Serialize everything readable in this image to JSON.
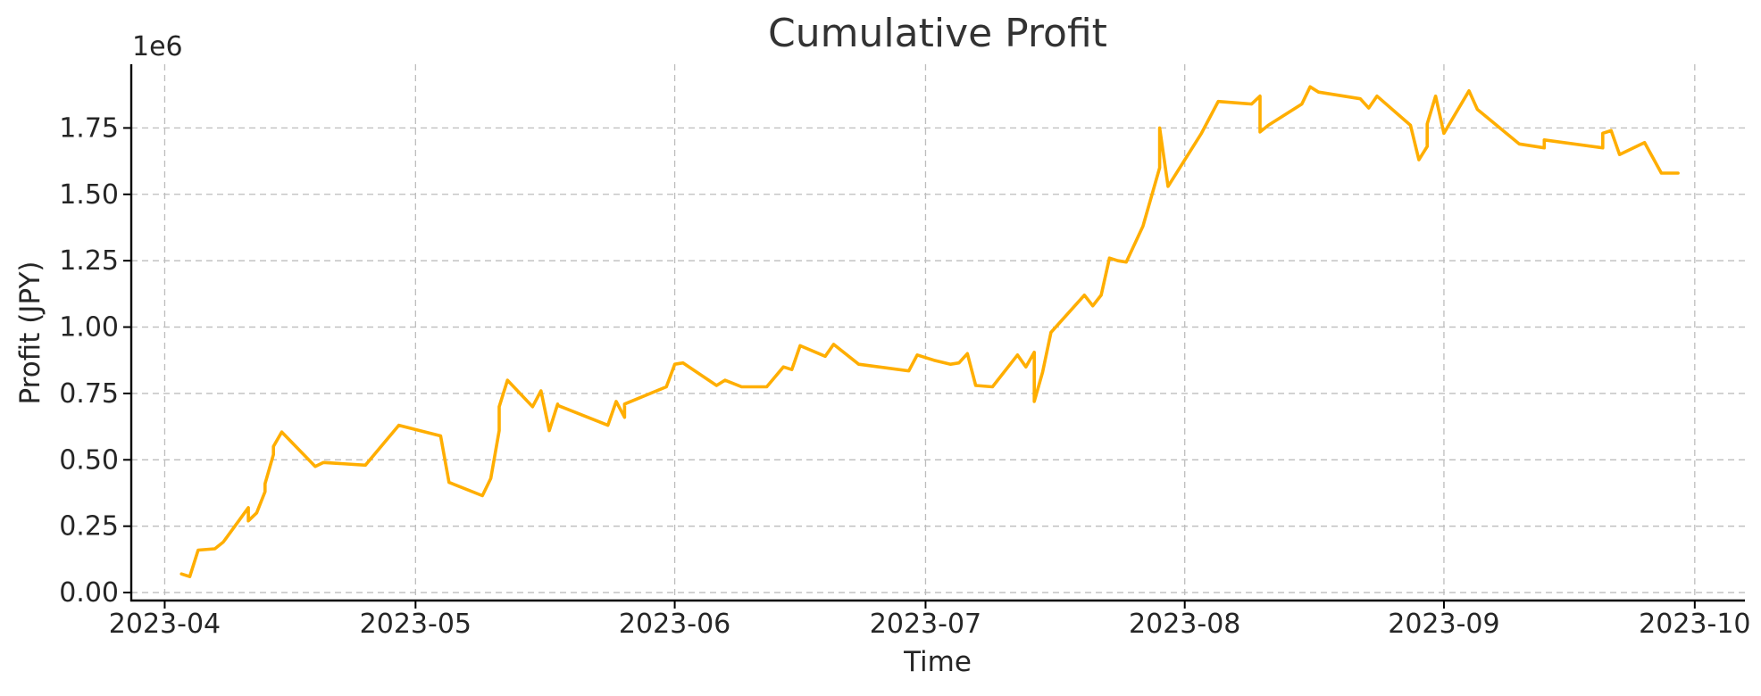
{
  "chart_data": {
    "type": "line",
    "title": "Cumulative Profit",
    "xlabel": "Time",
    "ylabel": "Profit (JPY)",
    "y_offset_label": "1e6",
    "y_scale": 1000000,
    "xlim": [
      "2023-03-28",
      "2023-10-07"
    ],
    "ylim": [
      -0.03,
      1.99
    ],
    "grid": true,
    "line_color": "#FFAE00",
    "x_ticks": [
      {
        "date": "2023-04-01",
        "label": "2023-04"
      },
      {
        "date": "2023-05-01",
        "label": "2023-05"
      },
      {
        "date": "2023-06-01",
        "label": "2023-06"
      },
      {
        "date": "2023-07-01",
        "label": "2023-07"
      },
      {
        "date": "2023-08-01",
        "label": "2023-08"
      },
      {
        "date": "2023-09-01",
        "label": "2023-09"
      },
      {
        "date": "2023-10-01",
        "label": "2023-10"
      }
    ],
    "y_ticks": [
      {
        "value": 0.0,
        "label": "0.00"
      },
      {
        "value": 0.25,
        "label": "0.25"
      },
      {
        "value": 0.5,
        "label": "0.50"
      },
      {
        "value": 0.75,
        "label": "0.75"
      },
      {
        "value": 1.0,
        "label": "1.00"
      },
      {
        "value": 1.25,
        "label": "1.25"
      },
      {
        "value": 1.5,
        "label": "1.50"
      },
      {
        "value": 1.75,
        "label": "1.75"
      }
    ],
    "series": [
      {
        "x": [
          "2023-04-03",
          "2023-04-04",
          "2023-04-05",
          "2023-04-07",
          "2023-04-08",
          "2023-04-11",
          "2023-04-11",
          "2023-04-12",
          "2023-04-13",
          "2023-04-13",
          "2023-04-14",
          "2023-04-14",
          "2023-04-15",
          "2023-04-19",
          "2023-04-20",
          "2023-04-25",
          "2023-04-29",
          "2023-05-04",
          "2023-05-05",
          "2023-05-09",
          "2023-05-10",
          "2023-05-11",
          "2023-05-11",
          "2023-05-12",
          "2023-05-15",
          "2023-05-16",
          "2023-05-17",
          "2023-05-18",
          "2023-05-18",
          "2023-05-24",
          "2023-05-25",
          "2023-05-26",
          "2023-05-26",
          "2023-05-31",
          "2023-06-01",
          "2023-06-02",
          "2023-06-06",
          "2023-06-07",
          "2023-06-09",
          "2023-06-12",
          "2023-06-14",
          "2023-06-15",
          "2023-06-16",
          "2023-06-19",
          "2023-06-20",
          "2023-06-23",
          "2023-06-29",
          "2023-06-30",
          "2023-07-02",
          "2023-07-04",
          "2023-07-05",
          "2023-07-06",
          "2023-07-07",
          "2023-07-09",
          "2023-07-12",
          "2023-07-13",
          "2023-07-14",
          "2023-07-14",
          "2023-07-15",
          "2023-07-16",
          "2023-07-20",
          "2023-07-21",
          "2023-07-22",
          "2023-07-22",
          "2023-07-23",
          "2023-07-23",
          "2023-07-24",
          "2023-07-25",
          "2023-07-27",
          "2023-07-29",
          "2023-07-29",
          "2023-07-30",
          "2023-08-03",
          "2023-08-05",
          "2023-08-09",
          "2023-08-10",
          "2023-08-10",
          "2023-08-11",
          "2023-08-15",
          "2023-08-16",
          "2023-08-17",
          "2023-08-22",
          "2023-08-23",
          "2023-08-23",
          "2023-08-24",
          "2023-08-28",
          "2023-08-29",
          "2023-08-30",
          "2023-08-30",
          "2023-08-31",
          "2023-09-01",
          "2023-09-04",
          "2023-09-05",
          "2023-09-10",
          "2023-09-13",
          "2023-09-13",
          "2023-09-20",
          "2023-09-20",
          "2023-09-21",
          "2023-09-22",
          "2023-09-25",
          "2023-09-27",
          "2023-09-29"
        ],
        "values": [
          0.07,
          0.06,
          0.16,
          0.165,
          0.19,
          0.32,
          0.27,
          0.3,
          0.38,
          0.41,
          0.52,
          0.55,
          0.605,
          0.475,
          0.49,
          0.48,
          0.63,
          0.59,
          0.415,
          0.365,
          0.43,
          0.61,
          0.7,
          0.8,
          0.7,
          0.76,
          0.61,
          0.71,
          0.705,
          0.63,
          0.72,
          0.66,
          0.71,
          0.775,
          0.86,
          0.865,
          0.78,
          0.8,
          0.775,
          0.775,
          0.85,
          0.84,
          0.93,
          0.89,
          0.935,
          0.86,
          0.835,
          0.895,
          0.875,
          0.86,
          0.865,
          0.9,
          0.78,
          0.775,
          0.895,
          0.85,
          0.905,
          0.72,
          0.83,
          0.98,
          1.12,
          1.08,
          1.12,
          1.12,
          1.26,
          1.26,
          1.25,
          1.245,
          1.38,
          1.6,
          1.75,
          1.53,
          1.73,
          1.85,
          1.84,
          1.87,
          1.735,
          1.76,
          1.84,
          1.905,
          1.885,
          1.86,
          1.825,
          1.825,
          1.87,
          1.76,
          1.63,
          1.68,
          1.765,
          1.87,
          1.73,
          1.89,
          1.82,
          1.69,
          1.675,
          1.705,
          1.675,
          1.73,
          1.74,
          1.65,
          1.695,
          1.58,
          1.58
        ]
      }
    ]
  }
}
